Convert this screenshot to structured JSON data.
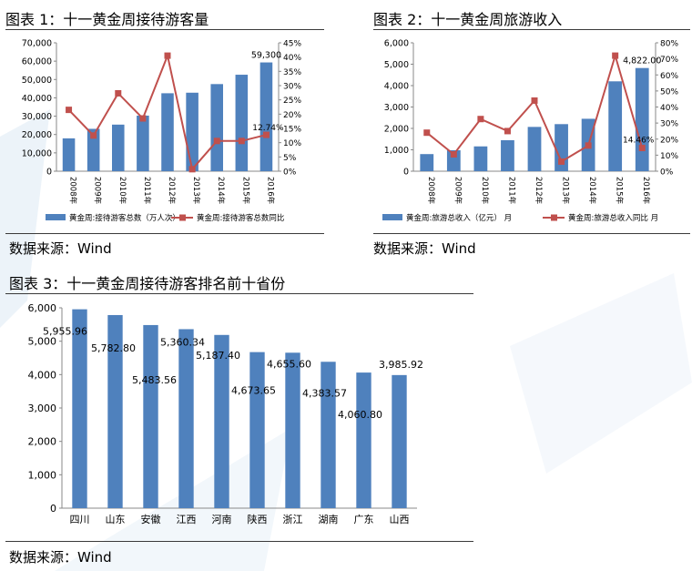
{
  "fig1": {
    "title": "图表 1：十一黄金周接待游客量",
    "source": "数据来源：Wind"
  },
  "fig2": {
    "title": "图表 2：十一黄金周旅游收入",
    "source": "数据来源：Wind"
  },
  "fig3": {
    "title": "图表 3：十一黄金周接待游客排名前十省份",
    "source": "数据来源：Wind"
  },
  "chart_data": [
    {
      "type": "bar",
      "categories": [
        "2008年",
        "2009年",
        "2010年",
        "2011年",
        "2012年",
        "2013年",
        "2014年",
        "2015年",
        "2016年"
      ],
      "series": [
        {
          "name": "黄金周:接待游客总数（万人次）",
          "type": "bar",
          "axis": "left",
          "color": "#4f81bd",
          "values": [
            17900,
            23100,
            25400,
            30300,
            42500,
            42800,
            47500,
            52600,
            59300
          ]
        },
        {
          "name": "黄金周:接待游客总数同比",
          "type": "line",
          "axis": "right",
          "color": "#c0504d",
          "unit": "%",
          "values": [
            21.5,
            12.5,
            27.3,
            18.5,
            40.5,
            0.7,
            10.6,
            10.6,
            12.74
          ]
        }
      ],
      "ylim": [
        0,
        70000
      ],
      "yticks": [
        0,
        10000,
        20000,
        30000,
        40000,
        50000,
        60000,
        70000
      ],
      "y2lim": [
        0,
        45
      ],
      "y2ticks": [
        0,
        5,
        10,
        15,
        20,
        25,
        30,
        35,
        40,
        45
      ],
      "annotations": [
        "59,300",
        "12.74%"
      ],
      "legend": "bottom"
    },
    {
      "type": "bar",
      "categories": [
        "2008年",
        "2009年",
        "2010年",
        "2011年",
        "2012年",
        "2013年",
        "2014年",
        "2015年",
        "2016年"
      ],
      "series": [
        {
          "name": "黄金周:旅游总收入（亿元） 月",
          "type": "bar",
          "axis": "left",
          "color": "#4f81bd",
          "values": [
            800,
            980,
            1160,
            1450,
            2070,
            2200,
            2450,
            4200,
            4822
          ]
        },
        {
          "name": "黄金周:旅游总收入同比 月",
          "type": "line",
          "axis": "right",
          "color": "#c0504d",
          "unit": "%",
          "values": [
            24,
            10.5,
            32.5,
            25,
            44,
            6,
            16,
            72,
            14.46
          ]
        }
      ],
      "ylim": [
        0,
        6000
      ],
      "yticks": [
        0,
        1000,
        2000,
        3000,
        4000,
        5000,
        6000
      ],
      "y2lim": [
        0,
        80
      ],
      "y2ticks": [
        0,
        10,
        20,
        30,
        40,
        50,
        60,
        70,
        80
      ],
      "annotations": [
        "4,822.00",
        "14.46%"
      ],
      "legend": "bottom"
    },
    {
      "type": "bar",
      "categories": [
        "四川",
        "山东",
        "安徽",
        "江西",
        "河南",
        "陕西",
        "浙江",
        "湖南",
        "广东",
        "山西"
      ],
      "series": [
        {
          "color": "#4f81bd",
          "values": [
            5955.96,
            5782.8,
            5483.56,
            5360.34,
            5187.4,
            4673.65,
            4655.6,
            4383.57,
            4060.8,
            3985.92
          ]
        }
      ],
      "value_labels": [
        "5,955.96",
        "5,782.80",
        "5,483.56",
        "5,360.34",
        "5,187.40",
        "4,673.65",
        "4,655.60",
        "4,383.57",
        "4,060.80",
        "3,985.92"
      ],
      "ylim": [
        0,
        6000
      ],
      "yticks": [
        0,
        1000,
        2000,
        3000,
        4000,
        5000,
        6000
      ]
    }
  ]
}
